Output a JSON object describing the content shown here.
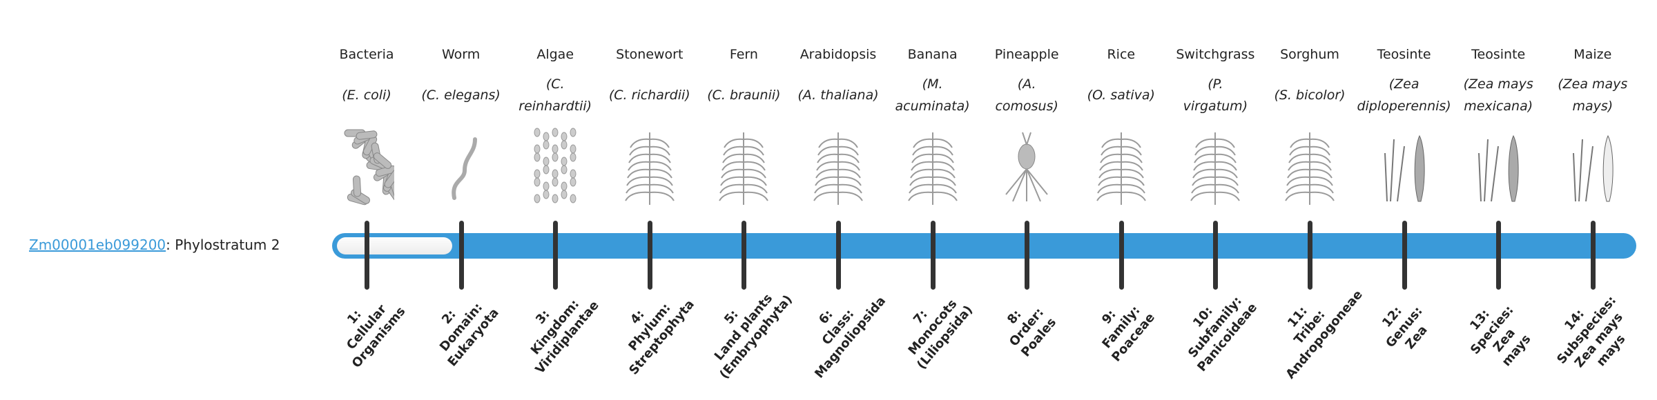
{
  "gene": {
    "id": "Zm00001eb099200",
    "suffix": ": Phylostratum 2",
    "phylostratum": 2
  },
  "colors": {
    "accent": "#3a9ad9",
    "tick": "#333333",
    "link": "#3a9ad9"
  },
  "progress": {
    "value": 2,
    "max": 14
  },
  "organisms": [
    {
      "name": "Bacteria",
      "species": [
        "(E. coli)"
      ],
      "icon": "bacteria-illustration"
    },
    {
      "name": "Worm",
      "species": [
        "(C. elegans)"
      ],
      "icon": "worm-illustration"
    },
    {
      "name": "Algae",
      "species": [
        "(C.",
        "reinhardtii)"
      ],
      "icon": "algae-illustration"
    },
    {
      "name": "Stonewort",
      "species": [
        "(C. richardii)"
      ],
      "icon": "stonewort-illustration"
    },
    {
      "name": "Fern",
      "species": [
        "(C. braunii)"
      ],
      "icon": "fern-illustration"
    },
    {
      "name": "Arabidopsis",
      "species": [
        "(A. thaliana)"
      ],
      "icon": "arabidopsis-illustration"
    },
    {
      "name": "Banana",
      "species": [
        "(M.",
        "acuminata)"
      ],
      "icon": "banana-illustration"
    },
    {
      "name": "Pineapple",
      "species": [
        "(A.",
        "comosus)"
      ],
      "icon": "pineapple-illustration"
    },
    {
      "name": "Rice",
      "species": [
        "(O. sativa)"
      ],
      "icon": "rice-illustration"
    },
    {
      "name": "Switchgrass",
      "species": [
        "(P.",
        "virgatum)"
      ],
      "icon": "switchgrass-illustration"
    },
    {
      "name": "Sorghum",
      "species": [
        "(S. bicolor)"
      ],
      "icon": "sorghum-illustration"
    },
    {
      "name": "Teosinte",
      "species": [
        "(Zea",
        "diploperennis)"
      ],
      "icon": "teosinte-illustration"
    },
    {
      "name": "Teosinte",
      "species": [
        "(Zea mays",
        "mexicana)"
      ],
      "icon": "teosinte-illustration"
    },
    {
      "name": "Maize",
      "species": [
        "(Zea mays",
        "mays)"
      ],
      "icon": "maize-illustration"
    }
  ],
  "strata": [
    [
      "1:",
      "Cellular",
      "Organisms"
    ],
    [
      "2:",
      "Domain:",
      "Eukaryota"
    ],
    [
      "3:",
      "Kingdom:",
      "Viridiplantae"
    ],
    [
      "4:",
      "Phylum:",
      "Streptophyta"
    ],
    [
      "5:",
      "Land plants",
      "(Embryophyta)"
    ],
    [
      "6:",
      "Class:",
      "Magnoliopsida"
    ],
    [
      "7:",
      "Monocots",
      "(Liliopsida)"
    ],
    [
      "8:",
      "Order:",
      "Poales"
    ],
    [
      "9:",
      "Family:",
      "Poaceae"
    ],
    [
      "10:",
      "Subfamily:",
      "Panicoideae"
    ],
    [
      "11:",
      "Tribe:",
      "Andropogoneae"
    ],
    [
      "12:",
      "Genus:",
      "Zea"
    ],
    [
      "13:",
      "Species:",
      "Zea",
      "mays"
    ],
    [
      "14:",
      "Subspecies:",
      "Zea mays",
      "mays"
    ]
  ]
}
